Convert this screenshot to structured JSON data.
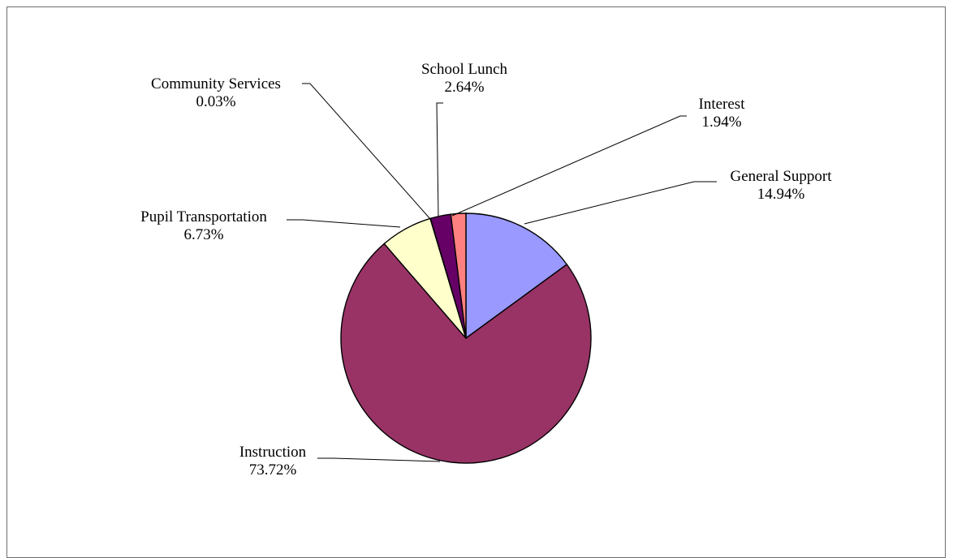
{
  "chart_data": {
    "type": "pie",
    "title": "",
    "slices": [
      {
        "label": "General Support",
        "value": 14.94,
        "value_label": "14.94%",
        "color": "#9999ff"
      },
      {
        "label": "Instruction",
        "value": 73.72,
        "value_label": "73.72%",
        "color": "#993366"
      },
      {
        "label": "Pupil Transportation",
        "value": 6.73,
        "value_label": "6.73%",
        "color": "#ffffcc"
      },
      {
        "label": "Community Services",
        "value": 0.03,
        "value_label": "0.03%",
        "color": "#ccffff"
      },
      {
        "label": "School Lunch",
        "value": 2.64,
        "value_label": "2.64%",
        "color": "#660066"
      },
      {
        "label": "Interest",
        "value": 1.94,
        "value_label": "1.94%",
        "color": "#ff8080"
      }
    ],
    "start_angle_deg": 0,
    "direction": "clockwise",
    "legend": "none",
    "label_style": "category name and percentage with leader lines"
  }
}
